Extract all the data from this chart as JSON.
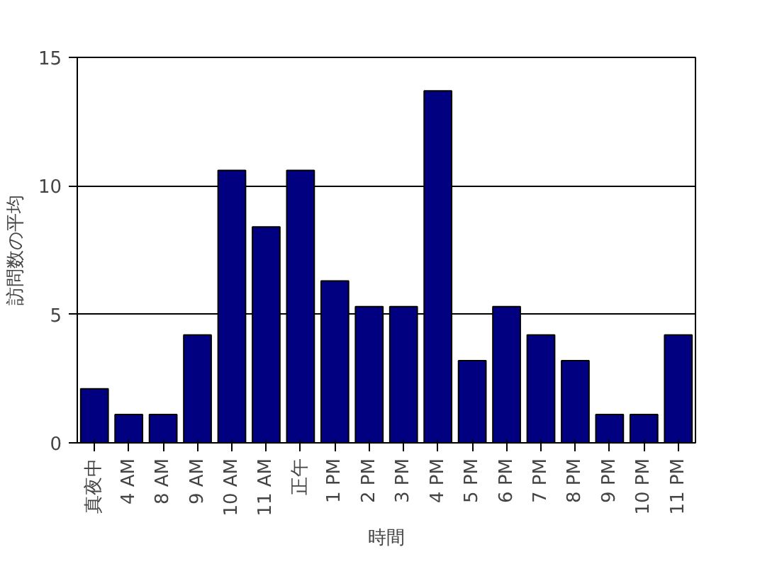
{
  "chart_data": {
    "type": "bar",
    "xlabel": "時間",
    "ylabel": "訪問数の平均",
    "categories": [
      "真夜中",
      "4 AM",
      "8 AM",
      "9 AM",
      "10 AM",
      "11 AM",
      "正午",
      "1 PM",
      "2 PM",
      "3 PM",
      "4 PM",
      "5 PM",
      "6 PM",
      "7 PM",
      "8 PM",
      "9 PM",
      "10 PM",
      "11 PM"
    ],
    "values": [
      2.1,
      1.1,
      1.1,
      4.2,
      10.6,
      8.4,
      10.6,
      6.3,
      5.3,
      5.3,
      13.7,
      3.2,
      5.3,
      4.2,
      3.2,
      1.1,
      1.1,
      4.2
    ],
    "color": "#000080",
    "ylim": [
      0,
      15
    ],
    "yticks": [
      0,
      5,
      10,
      15
    ],
    "grid": "y"
  }
}
